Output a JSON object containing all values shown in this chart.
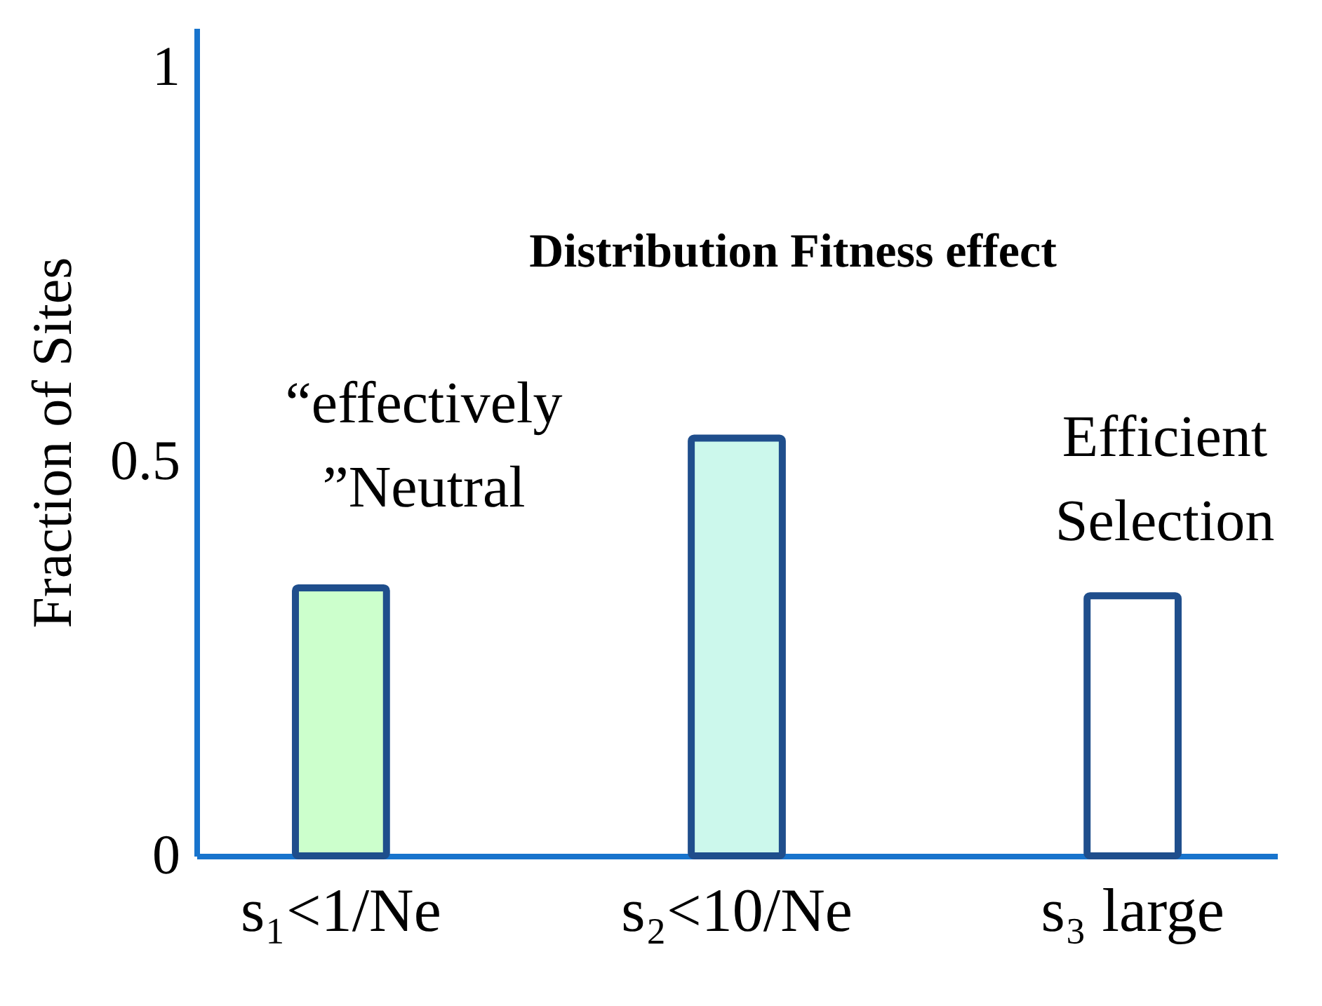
{
  "chart_data": {
    "type": "bar",
    "ylabel": "Fraction of Sites",
    "categories": [
      "s₁<1/Ne",
      "s₂<10/Ne",
      "s₃ large"
    ],
    "values": [
      0.34,
      0.53,
      0.33
    ],
    "colors": [
      "#ccffcc",
      "#ccf8ec",
      "#ffffff"
    ],
    "ylim": [
      0,
      1.05
    ],
    "yticks": [
      0,
      0.5,
      1
    ],
    "grid": false,
    "annotations": [
      "Distribution Fitness effect",
      "“effectively\n”Neutral",
      "Efficient\nSelection"
    ]
  }
}
